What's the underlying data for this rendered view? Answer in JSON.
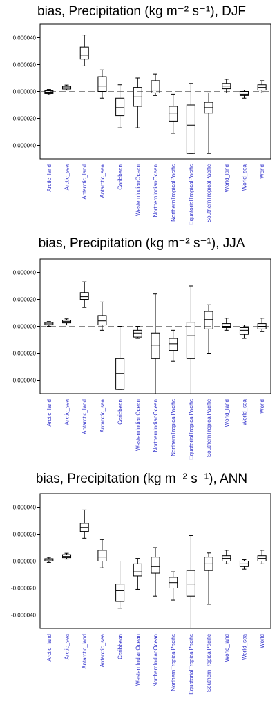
{
  "colors": {
    "category_label": "#3333cc",
    "axis": "#000000",
    "zero_line": "#888888"
  },
  "chart_data": [
    {
      "type": "box",
      "title": "bias, Precipitation (kg m⁻² s⁻¹), DJF",
      "categories": [
        "Arctic_land",
        "Arctic_sea",
        "Antarctic_land",
        "Antarctic_sea",
        "Caribbean",
        "WesternIndianOcean",
        "NorthernIndianOcean",
        "NorthernTropicalPacific",
        "EquatorialTropicalPacific",
        "SouthernTropicalPacific",
        "World_land",
        "World_sea",
        "World"
      ],
      "ylim": [
        -5e-05,
        5e-05
      ],
      "yticks": [
        -4e-05,
        -2e-05,
        0,
        2e-05,
        4e-05
      ],
      "ytick_labels": [
        "-0.000040",
        "-0.000020",
        "0.000000",
        "0.000020",
        "0.000040"
      ],
      "zero_line": true,
      "boxes": [
        {
          "min": -2.5e-06,
          "q1": -1.5e-06,
          "median": -5e-07,
          "q3": 5e-07,
          "max": 1.5e-06
        },
        {
          "min": 1e-06,
          "q1": 1.8e-06,
          "median": 2.8e-06,
          "q3": 3.8e-06,
          "max": 4.8e-06
        },
        {
          "min": 1.9e-05,
          "q1": 2.4e-05,
          "median": 2.7e-05,
          "q3": 3.3e-05,
          "max": 4.2e-05
        },
        {
          "min": -5e-06,
          "q1": 0.0,
          "median": 4e-06,
          "q3": 1.1e-05,
          "max": 1.6e-05
        },
        {
          "min": -2.7e-05,
          "q1": -1.8e-05,
          "median": -1.2e-05,
          "q3": -5e-06,
          "max": 5e-06
        },
        {
          "min": -2.7e-05,
          "q1": -1.1e-05,
          "median": -4e-06,
          "q3": 3e-06,
          "max": 1e-05
        },
        {
          "min": -3e-06,
          "q1": -1e-06,
          "median": 1e-06,
          "q3": 8e-06,
          "max": 1.3e-05
        },
        {
          "min": -3.1e-05,
          "q1": -2.2e-05,
          "median": -1.6e-05,
          "q3": -1.1e-05,
          "max": -2e-06
        },
        {
          "min": -4.6e-05,
          "q1": -4.6e-05,
          "median": -2.5e-05,
          "q3": -1e-05,
          "max": 6e-06
        },
        {
          "min": -4.6e-05,
          "q1": -1.6e-05,
          "median": -1.2e-05,
          "q3": -8e-06,
          "max": -1e-06
        },
        {
          "min": -1e-06,
          "q1": 2e-06,
          "median": 4e-06,
          "q3": 6e-06,
          "max": 9e-06
        },
        {
          "min": -5e-06,
          "q1": -3e-06,
          "median": -2e-06,
          "q3": 0.0,
          "max": 1e-06
        },
        {
          "min": -1e-06,
          "q1": 1e-06,
          "median": 3e-06,
          "q3": 5e-06,
          "max": 8e-06
        }
      ]
    },
    {
      "type": "box",
      "title": "bias, Precipitation (kg m⁻² s⁻¹), JJA",
      "categories": [
        "Arctic_land",
        "Arctic_sea",
        "Antarctic_land",
        "Antarctic_sea",
        "Caribbean",
        "WesternIndianOcean",
        "NorthernIndianOcean",
        "NorthernTropicalPacific",
        "EquatorialTropicalPacific",
        "SouthernTropicalPacific",
        "World_land",
        "World_sea",
        "World"
      ],
      "ylim": [
        -5e-05,
        5e-05
      ],
      "yticks": [
        -4e-05,
        -2e-05,
        0,
        2e-05,
        4e-05
      ],
      "ytick_labels": [
        "-0.000040",
        "-0.000020",
        "0.000000",
        "0.000020",
        "0.000040"
      ],
      "zero_line": true,
      "boxes": [
        {
          "min": 0.0,
          "q1": 1e-06,
          "median": 1.8e-06,
          "q3": 2.8e-06,
          "max": 3.5e-06
        },
        {
          "min": 1e-06,
          "q1": 2.5e-06,
          "median": 3.5e-06,
          "q3": 4.5e-06,
          "max": 5.5e-06
        },
        {
          "min": 1.4e-05,
          "q1": 2e-05,
          "median": 2.2e-05,
          "q3": 2.5e-05,
          "max": 3.3e-05
        },
        {
          "min": -3e-06,
          "q1": 1e-06,
          "median": 4e-06,
          "q3": 8e-06,
          "max": 1.8e-05
        },
        {
          "min": -4.7e-05,
          "q1": -4.7e-05,
          "median": -3.5e-05,
          "q3": -2.4e-05,
          "max": 0.0
        },
        {
          "min": -9e-06,
          "q1": -8e-06,
          "median": -5e-06,
          "q3": -3e-06,
          "max": 0.0
        },
        {
          "min": -5e-05,
          "q1": -2.4e-05,
          "median": -1.4e-05,
          "q3": -5e-06,
          "max": 2.4e-05
        },
        {
          "min": -2.6e-05,
          "q1": -1.8e-05,
          "median": -1.3e-05,
          "q3": -9e-06,
          "max": -3e-06
        },
        {
          "min": -5e-05,
          "q1": -2.4e-05,
          "median": -7e-06,
          "q3": 3e-06,
          "max": 3e-05
        },
        {
          "min": -2e-05,
          "q1": -2e-06,
          "median": 5e-06,
          "q3": 1.1e-05,
          "max": 1.6e-05
        },
        {
          "min": -3e-06,
          "q1": -1e-06,
          "median": 0.0,
          "q3": 2e-06,
          "max": 6e-06
        },
        {
          "min": -9e-06,
          "q1": -6e-06,
          "median": -3e-06,
          "q3": -1e-06,
          "max": 1e-06
        },
        {
          "min": -4e-06,
          "q1": -2e-06,
          "median": 0.0,
          "q3": 2e-06,
          "max": 6e-06
        }
      ]
    },
    {
      "type": "box",
      "title": "bias, Precipitation (kg m⁻² s⁻¹), ANN",
      "categories": [
        "Arctic_land",
        "Arctic_sea",
        "Antarctic_land",
        "Antarctic_sea",
        "Caribbean",
        "WesternIndianOcean",
        "NorthernIndianOcean",
        "NorthernTropicalPacific",
        "EquatorialTropicalPacific",
        "SouthernTropicalPacific",
        "World_land",
        "World_sea",
        "World"
      ],
      "ylim": [
        -5e-05,
        5e-05
      ],
      "yticks": [
        -4e-05,
        -2e-05,
        0,
        2e-05,
        4e-05
      ],
      "ytick_labels": [
        "-0.000040",
        "-0.000020",
        "0.000000",
        "0.000020",
        "0.000040"
      ],
      "zero_line": true,
      "boxes": [
        {
          "min": -1e-06,
          "q1": 0.0,
          "median": 8e-07,
          "q3": 1.8e-06,
          "max": 2.8e-06
        },
        {
          "min": 1.5e-06,
          "q1": 2.5e-06,
          "median": 3.5e-06,
          "q3": 4.8e-06,
          "max": 5.8e-06
        },
        {
          "min": 1.7e-05,
          "q1": 2.2e-05,
          "median": 2.5e-05,
          "q3": 2.8e-05,
          "max": 3.8e-05
        },
        {
          "min": -5e-06,
          "q1": 0.0,
          "median": 3e-06,
          "q3": 8e-06,
          "max": 1.6e-05
        },
        {
          "min": -3.5e-05,
          "q1": -3e-05,
          "median": -2.2e-05,
          "q3": -1.7e-05,
          "max": 0.0
        },
        {
          "min": -2.1e-05,
          "q1": -1.1e-05,
          "median": -8e-06,
          "q3": -2e-06,
          "max": 2e-06
        },
        {
          "min": -2.6e-05,
          "q1": -9e-06,
          "median": -4e-06,
          "q3": 3e-06,
          "max": 1e-05
        },
        {
          "min": -2.9e-05,
          "q1": -2e-05,
          "median": -1.6e-05,
          "q3": -1.2e-05,
          "max": -8e-06
        },
        {
          "min": -5e-05,
          "q1": -2.6e-05,
          "median": -1.7e-05,
          "q3": -7e-06,
          "max": 1.9e-05
        },
        {
          "min": -3.2e-05,
          "q1": -7e-06,
          "median": -2e-06,
          "q3": 3e-06,
          "max": 6e-06
        },
        {
          "min": -2e-06,
          "q1": 0.0,
          "median": 2e-06,
          "q3": 4e-06,
          "max": 8e-06
        },
        {
          "min": -6e-06,
          "q1": -4e-06,
          "median": -2e-06,
          "q3": 0.0,
          "max": 1e-06
        },
        {
          "min": -2e-06,
          "q1": 0.0,
          "median": 2e-06,
          "q3": 4e-06,
          "max": 8e-06
        }
      ]
    }
  ]
}
